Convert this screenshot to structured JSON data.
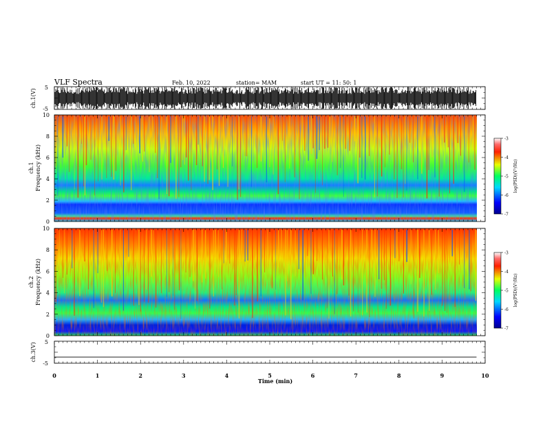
{
  "header": {
    "title": "VLF Spectra",
    "date": "Feb. 10, 2022",
    "station": "station= MAM",
    "start": "start  UT =   11: 50: 1"
  },
  "chart_data": [
    {
      "type": "line",
      "ylabel": "ch.1(V)",
      "ylim": [
        -5,
        5
      ],
      "yticks": [
        "5",
        "-5"
      ],
      "description_of_trace": "dense burst-like waveform"
    },
    {
      "type": "heatmap",
      "ylabel_top": "ch.1",
      "ylabel": "Frequency  (kHz)",
      "ylim": [
        0,
        10
      ],
      "yticks": [
        "0",
        "2",
        "4",
        "6",
        "8",
        "10"
      ],
      "colorbar": {
        "label": "log(PSD)(V²/Hz)",
        "ticks": [
          "-3",
          "-4",
          "-5",
          "-6",
          "-7"
        ],
        "range": [
          -7,
          -3
        ]
      }
    },
    {
      "type": "heatmap",
      "ylabel_top": "ch.2",
      "ylabel": "Frequency  (kHz)",
      "ylim": [
        0,
        10
      ],
      "yticks": [
        "0",
        "2",
        "4",
        "6",
        "8",
        "10"
      ],
      "colorbar": {
        "label": "log(PSD)(V²/Hz)",
        "ticks": [
          "-3",
          "-4",
          "-5",
          "-6",
          "-7"
        ],
        "range": [
          -7,
          -3
        ]
      }
    },
    {
      "type": "line",
      "ylabel": "ch.3(V)",
      "ylim": [
        -5,
        5
      ],
      "yticks": [
        "5",
        "-5"
      ],
      "values": [
        -2.2,
        -2.2
      ]
    }
  ],
  "xaxis": {
    "label": "Time  (min)",
    "xlim": [
      0,
      10
    ],
    "ticks": [
      "0",
      "1",
      "2",
      "3",
      "4",
      "5",
      "6",
      "7",
      "8",
      "9",
      "10"
    ],
    "data_end": 9.8
  }
}
